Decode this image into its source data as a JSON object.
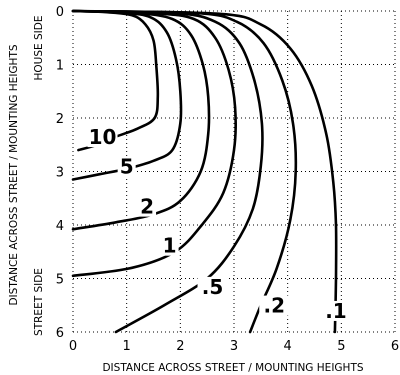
{
  "chart_data": {
    "type": "line",
    "title": "",
    "xlabel": "DISTANCE ACROSS STREET / MOUNTING HEIGHTS",
    "ylabel": "DISTANCE ACROSS STREET / MOUNTING HEIGHTS",
    "y_side_labels": {
      "top": "HOUSE SIDE",
      "bottom": "STREET SIDE"
    },
    "xlim": [
      0,
      6
    ],
    "ylim": [
      0,
      6
    ],
    "y_inverted": true,
    "grid": true,
    "x_ticks": [
      "0",
      "1",
      "2",
      "3",
      "4",
      "5",
      "6"
    ],
    "y_ticks": [
      "0",
      "1",
      "2",
      "3",
      "4",
      "5",
      "6"
    ],
    "series": [
      {
        "name": "10",
        "points": [
          [
            0.0,
            0.0
          ],
          [
            0.6,
            0.02
          ],
          [
            1.1,
            0.08
          ],
          [
            1.35,
            0.25
          ],
          [
            1.5,
            0.55
          ],
          [
            1.55,
            1.0
          ],
          [
            1.58,
            1.6
          ],
          [
            1.52,
            2.0
          ],
          [
            1.2,
            2.2
          ],
          [
            0.8,
            2.35
          ],
          [
            0.45,
            2.5
          ],
          [
            0.1,
            2.6
          ]
        ]
      },
      {
        "name": "5",
        "points": [
          [
            0.0,
            0.0
          ],
          [
            0.9,
            0.03
          ],
          [
            1.45,
            0.12
          ],
          [
            1.75,
            0.4
          ],
          [
            1.92,
            0.9
          ],
          [
            2.0,
            1.5
          ],
          [
            2.0,
            2.1
          ],
          [
            1.85,
            2.6
          ],
          [
            1.5,
            2.8
          ],
          [
            1.0,
            2.95
          ],
          [
            0.5,
            3.05
          ],
          [
            0.0,
            3.15
          ]
        ]
      },
      {
        "name": "2",
        "points": [
          [
            0.0,
            0.0
          ],
          [
            1.2,
            0.04
          ],
          [
            1.85,
            0.15
          ],
          [
            2.2,
            0.45
          ],
          [
            2.42,
            1.0
          ],
          [
            2.52,
            1.6
          ],
          [
            2.52,
            2.3
          ],
          [
            2.38,
            3.0
          ],
          [
            2.0,
            3.55
          ],
          [
            1.5,
            3.8
          ],
          [
            0.8,
            3.95
          ],
          [
            0.0,
            4.08
          ]
        ]
      },
      {
        "name": "1",
        "points": [
          [
            0.0,
            0.0
          ],
          [
            1.5,
            0.04
          ],
          [
            2.25,
            0.15
          ],
          [
            2.65,
            0.5
          ],
          [
            2.9,
            1.1
          ],
          [
            3.02,
            1.8
          ],
          [
            3.0,
            2.6
          ],
          [
            2.8,
            3.4
          ],
          [
            2.4,
            4.0
          ],
          [
            1.9,
            4.5
          ],
          [
            1.1,
            4.8
          ],
          [
            0.0,
            4.95
          ]
        ]
      },
      {
        "name": ".5",
        "points": [
          [
            0.0,
            0.0
          ],
          [
            1.9,
            0.04
          ],
          [
            2.65,
            0.2
          ],
          [
            3.1,
            0.6
          ],
          [
            3.38,
            1.3
          ],
          [
            3.52,
            2.1
          ],
          [
            3.5,
            2.9
          ],
          [
            3.35,
            3.7
          ],
          [
            3.0,
            4.4
          ],
          [
            2.5,
            5.0
          ],
          [
            1.7,
            5.5
          ],
          [
            0.8,
            6.0
          ]
        ]
      },
      {
        "name": ".2",
        "points": [
          [
            0.0,
            0.0
          ],
          [
            2.3,
            0.04
          ],
          [
            3.05,
            0.2
          ],
          [
            3.55,
            0.6
          ],
          [
            3.9,
            1.3
          ],
          [
            4.1,
            2.1
          ],
          [
            4.15,
            3.0
          ],
          [
            4.05,
            3.9
          ],
          [
            3.8,
            4.8
          ],
          [
            3.5,
            5.5
          ],
          [
            3.3,
            6.0
          ]
        ]
      },
      {
        "name": ".1",
        "points": [
          [
            0.0,
            0.0
          ],
          [
            2.7,
            0.05
          ],
          [
            3.5,
            0.25
          ],
          [
            4.05,
            0.7
          ],
          [
            4.45,
            1.4
          ],
          [
            4.72,
            2.3
          ],
          [
            4.85,
            3.2
          ],
          [
            4.9,
            4.0
          ],
          [
            4.9,
            5.0
          ],
          [
            4.88,
            6.0
          ]
        ]
      }
    ],
    "contour_labels": [
      {
        "text": "10",
        "x": 0.55,
        "y": 2.45
      },
      {
        "text": "5",
        "x": 1.0,
        "y": 3.0
      },
      {
        "text": "2",
        "x": 1.38,
        "y": 3.75
      },
      {
        "text": "1",
        "x": 1.8,
        "y": 4.48
      },
      {
        "text": ".5",
        "x": 2.6,
        "y": 5.25
      },
      {
        "text": ".2",
        "x": 3.75,
        "y": 5.6
      },
      {
        "text": ".1",
        "x": 4.9,
        "y": 5.7
      }
    ]
  }
}
